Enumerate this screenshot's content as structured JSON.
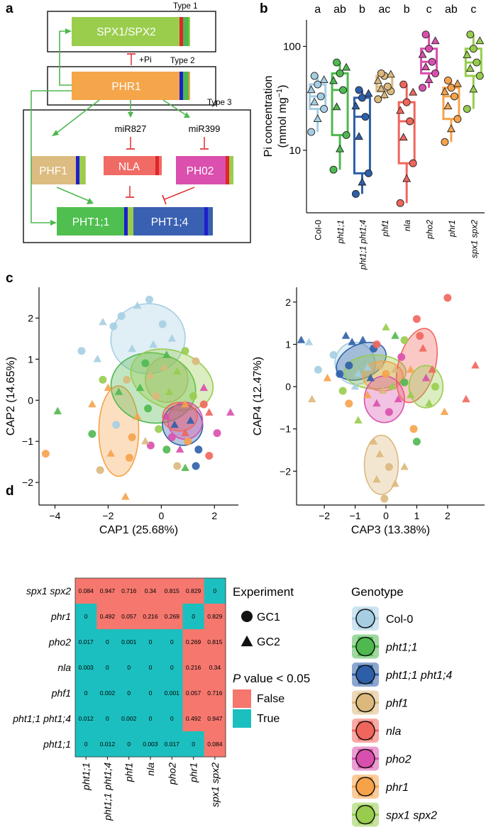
{
  "panel_labels": {
    "a": "a",
    "b": "b",
    "c": "c",
    "d": "d"
  },
  "genes": {
    "spx": "SPX1/SPX2",
    "phr": "PHR1",
    "phf1": "PHF1",
    "nla": "NLA",
    "pho2": "PH02",
    "pht11": "PHT1;1",
    "pht14": "PHT1;4"
  },
  "pathway": {
    "type1": "Type 1",
    "type2": "Type 2",
    "type3": "Type 3",
    "pi": "+Pi",
    "mir827": "miR827",
    "mir399": "miR399"
  },
  "colors": {
    "Col-0": "#a6cee3",
    "pht1;1": "#4fb84f",
    "pht1;1 pht1;4": "#2d5fa8",
    "phf1": "#dcb87c",
    "nla": "#f0655c",
    "pho2": "#d94fad",
    "phr1": "#f6a24a",
    "spx1 spx2": "#98cc4e",
    "false": "#f5776e",
    "true": "#1cbfbf"
  },
  "panel_b": {
    "type": "box",
    "ylabel": "Pi concentration",
    "yunit": "(mmol mg",
    "yunit_sup": "−1",
    "yunit_end": ")",
    "yscale": "log",
    "ylim": [
      2.5,
      180
    ],
    "yticks": [
      10,
      100
    ],
    "categories": [
      "Col-0",
      "pht1;1",
      "pht1;1 pht1;4",
      "phf1",
      "nla",
      "pho2",
      "phr1",
      "spx1 spx2"
    ],
    "letters": [
      "a",
      "ab",
      "b",
      "ac",
      "b",
      "c",
      "ab",
      "c"
    ],
    "boxes": [
      {
        "q1": 25,
        "median": 33,
        "q3": 43,
        "low": 15,
        "high": 52
      },
      {
        "q1": 14,
        "median": 38,
        "q3": 55,
        "low": 6.5,
        "high": 70
      },
      {
        "q1": 6,
        "median": 21,
        "q3": 32,
        "low": 3.8,
        "high": 38
      },
      {
        "q1": 37,
        "median": 41,
        "q3": 52,
        "low": 31,
        "high": 55
      },
      {
        "q1": 7.5,
        "median": 19,
        "q3": 29,
        "low": 3.1,
        "high": 43
      },
      {
        "q1": 55,
        "median": 71,
        "q3": 95,
        "low": 40,
        "high": 130
      },
      {
        "q1": 20,
        "median": 33,
        "q3": 40,
        "low": 12,
        "high": 47
      },
      {
        "q1": 52,
        "median": 70,
        "q3": 95,
        "low": 25,
        "high": 130
      }
    ]
  },
  "panel_c1": {
    "type": "scatter",
    "xlabel": "CAP1 (25.68%)",
    "ylabel": "CAP2 (14.65%)",
    "xlim": [
      -4.6,
      2.9
    ],
    "ylim": [
      -2.55,
      2.75
    ],
    "xticks": [
      -4,
      -2,
      0,
      2
    ],
    "yticks": [
      -2,
      -1,
      0,
      1,
      2
    ],
    "ellipses": [
      {
        "g": "Col-0",
        "cx": -0.5,
        "cy": 1.5,
        "rx": 1.4,
        "ry": 0.85,
        "rot": -10
      },
      {
        "g": "phr1",
        "cx": -1.6,
        "cy": -0.75,
        "rx": 0.75,
        "ry": 1.1,
        "rot": 0
      },
      {
        "g": "phf1",
        "cx": 0.2,
        "cy": 0.5,
        "rx": 0.8,
        "ry": 0.55,
        "rot": 0
      },
      {
        "g": "pht1;1",
        "cx": -0.3,
        "cy": 0.3,
        "rx": 1.6,
        "ry": 0.85,
        "rot": 10
      },
      {
        "g": "spx1 spx2",
        "cx": 0.4,
        "cy": 0.5,
        "rx": 1.6,
        "ry": 0.7,
        "rot": 20
      },
      {
        "g": "pht1;1 pht1;4",
        "cx": 0.8,
        "cy": -0.6,
        "rx": 0.75,
        "ry": 0.5,
        "rot": -30
      },
      {
        "g": "pho2",
        "cx": 0.9,
        "cy": -0.5,
        "rx": 0.65,
        "ry": 0.45,
        "rot": 0
      },
      {
        "g": "nla",
        "cx": 0.7,
        "cy": -0.4,
        "rx": 0.65,
        "ry": 0.35,
        "rot": 0
      }
    ],
    "points": [
      {
        "x": -4.35,
        "y": -1.3,
        "g": "phr1",
        "m": "c"
      },
      {
        "x": -3.9,
        "y": -0.27,
        "g": "pht1;1",
        "m": "t"
      },
      {
        "x": -2.6,
        "y": -0.82,
        "g": "pht1;1",
        "m": "c"
      },
      {
        "x": -2.4,
        "y": 1.0,
        "g": "Col-0",
        "m": "t"
      },
      {
        "x": -2.2,
        "y": 1.9,
        "g": "Col-0",
        "m": "t"
      },
      {
        "x": -1.8,
        "y": 1.8,
        "g": "Col-0",
        "m": "c"
      },
      {
        "x": -2.2,
        "y": 0.5,
        "g": "spx1 spx2",
        "m": "c"
      },
      {
        "x": -2.0,
        "y": 0.3,
        "g": "phr1",
        "m": "t"
      },
      {
        "x": -1.5,
        "y": 2.05,
        "g": "Col-0",
        "m": "c"
      },
      {
        "x": -0.9,
        "y": 2.3,
        "g": "Col-0",
        "m": "t"
      },
      {
        "x": -0.45,
        "y": 2.45,
        "g": "Col-0",
        "m": "c"
      },
      {
        "x": 0.05,
        "y": 1.85,
        "g": "Col-0",
        "m": "c"
      },
      {
        "x": -1.1,
        "y": 1.25,
        "g": "Col-0",
        "m": "t"
      },
      {
        "x": -0.3,
        "y": 1.35,
        "g": "Col-0",
        "m": "t"
      },
      {
        "x": 0.4,
        "y": 1.5,
        "g": "Col-0",
        "m": "t"
      },
      {
        "x": -1.6,
        "y": 0.2,
        "g": "pht1;1",
        "m": "t"
      },
      {
        "x": -1.3,
        "y": 0.5,
        "g": "phf1",
        "m": "c"
      },
      {
        "x": -1.2,
        "y": -1.4,
        "g": "phr1",
        "m": "c"
      },
      {
        "x": -1.9,
        "y": -1.3,
        "g": "phr1",
        "m": "t"
      },
      {
        "x": -1.35,
        "y": -2.35,
        "g": "phr1",
        "m": "t"
      },
      {
        "x": -0.4,
        "y": -1.1,
        "g": "pho2",
        "m": "c"
      },
      {
        "x": 0.6,
        "y": -1.6,
        "g": "phf1",
        "m": "c"
      },
      {
        "x": 0.9,
        "y": -1.65,
        "g": "pht1;1",
        "m": "t"
      },
      {
        "x": 1.3,
        "y": -1.6,
        "g": "pht1;1 pht1;4",
        "m": "c"
      },
      {
        "x": 1.4,
        "y": -1.2,
        "g": "pht1;1 pht1;4",
        "m": "c"
      },
      {
        "x": 1.8,
        "y": -1.35,
        "g": "nla",
        "m": "c"
      },
      {
        "x": 2.1,
        "y": -0.8,
        "g": "pho2",
        "m": "c"
      },
      {
        "x": 1.8,
        "y": -0.3,
        "g": "nla",
        "m": "t"
      },
      {
        "x": 1.6,
        "y": 0.3,
        "g": "pho2",
        "m": "t"
      },
      {
        "x": 1.3,
        "y": 0.95,
        "g": "phf1",
        "m": "c"
      },
      {
        "x": 0.9,
        "y": 1.2,
        "g": "spx1 spx2",
        "m": "c"
      },
      {
        "x": -0.6,
        "y": 0.9,
        "g": "pht1;1",
        "m": "c"
      },
      {
        "x": 0.1,
        "y": 0.8,
        "g": "phf1",
        "m": "t"
      },
      {
        "x": 0.6,
        "y": 0.7,
        "g": "spx1 spx2",
        "m": "t"
      },
      {
        "x": -0.8,
        "y": 0.3,
        "g": "pht1;1",
        "m": "t"
      },
      {
        "x": -0.2,
        "y": 0.1,
        "g": "phf1",
        "m": "c"
      },
      {
        "x": 0.3,
        "y": 0.2,
        "g": "spx1 spx2",
        "m": "t"
      },
      {
        "x": 0.9,
        "y": -0.1,
        "g": "phr1",
        "m": "t"
      },
      {
        "x": -0.5,
        "y": -0.2,
        "g": "pht1;1",
        "m": "c"
      },
      {
        "x": 0.2,
        "y": -0.4,
        "g": "pho2",
        "m": "t"
      },
      {
        "x": 0.5,
        "y": -0.6,
        "g": "pht1;1 pht1;4",
        "m": "t"
      },
      {
        "x": 0.9,
        "y": -0.8,
        "g": "nla",
        "m": "t"
      },
      {
        "x": 1.1,
        "y": -0.5,
        "g": "pht1;1 pht1;4",
        "m": "t"
      },
      {
        "x": 0.4,
        "y": -0.9,
        "g": "pho2",
        "m": "c"
      },
      {
        "x": -0.1,
        "y": -0.7,
        "g": "spx1 spx2",
        "m": "c"
      },
      {
        "x": -0.9,
        "y": -0.4,
        "g": "phr1",
        "m": "t"
      },
      {
        "x": -1.1,
        "y": -0.9,
        "g": "phr1",
        "m": "c"
      },
      {
        "x": -0.6,
        "y": -1.0,
        "g": "phf1",
        "m": "t"
      },
      {
        "x": 0.7,
        "y": -1.2,
        "g": "pho2",
        "m": "t"
      },
      {
        "x": 1.0,
        "y": -1.0,
        "g": "phr1",
        "m": "c"
      },
      {
        "x": -2.6,
        "y": -0.1,
        "g": "phr1",
        "m": "t"
      },
      {
        "x": -3.0,
        "y": 1.2,
        "g": "Col-0",
        "m": "c"
      },
      {
        "x": 1.6,
        "y": -0.1,
        "g": "nla",
        "m": "c"
      },
      {
        "x": 0.2,
        "y": 1.1,
        "g": "pht1;1",
        "m": "t"
      },
      {
        "x": -0.4,
        "y": 0.6,
        "g": "phf1",
        "m": "t"
      },
      {
        "x": 1.2,
        "y": 0.1,
        "g": "spx1 spx2",
        "m": "c"
      },
      {
        "x": -1.7,
        "y": -0.6,
        "g": "Col-0",
        "m": "c"
      },
      {
        "x": -2.3,
        "y": -1.7,
        "g": "phf1",
        "m": "c"
      },
      {
        "x": 0.2,
        "y": -1.2,
        "g": "pht1;1",
        "m": "c"
      },
      {
        "x": 2.6,
        "y": -0.3,
        "g": "pho2",
        "m": "t"
      }
    ]
  },
  "panel_c2": {
    "type": "scatter",
    "xlabel": "CAP3 (13.38%)",
    "ylabel": "CAP4 (12.47%)",
    "xlim": [
      -2.9,
      3.2
    ],
    "ylim": [
      -2.8,
      2.35
    ],
    "xticks": [
      -2,
      -1,
      0,
      1,
      2
    ],
    "yticks": [
      -2,
      -1,
      0,
      1,
      2
    ],
    "ellipses": [
      {
        "g": "Col-0",
        "cx": -1.0,
        "cy": 0.55,
        "rx": 0.65,
        "ry": 0.5,
        "rot": -10
      },
      {
        "g": "pht1;1 pht1;4",
        "cx": -0.8,
        "cy": 0.6,
        "rx": 0.85,
        "ry": 0.4,
        "rot": -25
      },
      {
        "g": "spx1 spx2",
        "cx": -0.35,
        "cy": 0.35,
        "rx": 1.0,
        "ry": 0.4,
        "rot": 0
      },
      {
        "g": "phr1",
        "cx": -0.1,
        "cy": 0.25,
        "rx": 0.65,
        "ry": 0.35,
        "rot": 0
      },
      {
        "g": "pho2",
        "cx": -0.05,
        "cy": -0.3,
        "rx": 0.65,
        "ry": 0.55,
        "rot": 0
      },
      {
        "g": "nla",
        "cx": 1.0,
        "cy": 0.5,
        "rx": 0.6,
        "ry": 0.9,
        "rot": 15
      },
      {
        "g": "spx1 spx2",
        "cx": 1.3,
        "cy": 0.0,
        "rx": 0.55,
        "ry": 0.5,
        "rot": 0
      },
      {
        "g": "phf1",
        "cx": -0.15,
        "cy": -1.85,
        "rx": 0.55,
        "ry": 0.7,
        "rot": 0
      }
    ],
    "points": [
      {
        "x": -2.75,
        "y": 1.1,
        "g": "pht1;1 pht1;4",
        "m": "t"
      },
      {
        "x": -2.5,
        "y": 1.05,
        "g": "Col-0",
        "m": "t"
      },
      {
        "x": -1.3,
        "y": 1.2,
        "g": "pht1;1 pht1;4",
        "m": "t"
      },
      {
        "x": -1.1,
        "y": 1.05,
        "g": "pht1;1 pht1;4",
        "m": "t"
      },
      {
        "x": -0.75,
        "y": 1.1,
        "g": "pht1;1 pht1;4",
        "m": "t"
      },
      {
        "x": -1.7,
        "y": 0.75,
        "g": "Col-0",
        "m": "c"
      },
      {
        "x": -1.9,
        "y": 0.2,
        "g": "phr1",
        "m": "t"
      },
      {
        "x": -1.2,
        "y": 0.5,
        "g": "pht1;1 pht1;4",
        "m": "c"
      },
      {
        "x": -0.9,
        "y": 0.3,
        "g": "Col-0",
        "m": "t"
      },
      {
        "x": -1.5,
        "y": 0.3,
        "g": "pht1;1 pht1;4",
        "m": "c"
      },
      {
        "x": -0.4,
        "y": 0.9,
        "g": "pht1;1 pht1;4",
        "m": "c"
      },
      {
        "x": -0.6,
        "y": 0.45,
        "g": "Col-0",
        "m": "t"
      },
      {
        "x": -0.2,
        "y": 0.5,
        "g": "phf1",
        "m": "c"
      },
      {
        "x": 0.3,
        "y": 1.2,
        "g": "pht1;1",
        "m": "t"
      },
      {
        "x": 0.6,
        "y": 1.1,
        "g": "spx1 spx2",
        "m": "c"
      },
      {
        "x": -0.3,
        "y": 1.0,
        "g": "nla",
        "m": "c"
      },
      {
        "x": -1.2,
        "y": -0.4,
        "g": "phr1",
        "m": "c"
      },
      {
        "x": -0.6,
        "y": -0.2,
        "g": "phr1",
        "m": "t"
      },
      {
        "x": -0.3,
        "y": -0.4,
        "g": "pho2",
        "m": "t"
      },
      {
        "x": 0.1,
        "y": -0.6,
        "g": "pho2",
        "m": "c"
      },
      {
        "x": 0.4,
        "y": -0.3,
        "g": "pho2",
        "m": "t"
      },
      {
        "x": 0.2,
        "y": 0.0,
        "g": "spx1 spx2",
        "m": "t"
      },
      {
        "x": 0.6,
        "y": 0.1,
        "g": "pht1;1",
        "m": "c"
      },
      {
        "x": 0.8,
        "y": -0.2,
        "g": "spx1 spx2",
        "m": "t"
      },
      {
        "x": 1.1,
        "y": 1.2,
        "g": "nla",
        "m": "c"
      },
      {
        "x": 1.2,
        "y": 0.9,
        "g": "nla",
        "m": "t"
      },
      {
        "x": 1.5,
        "y": 0.4,
        "g": "nla",
        "m": "t"
      },
      {
        "x": 1.0,
        "y": 1.6,
        "g": "nla",
        "m": "c"
      },
      {
        "x": 1.6,
        "y": 0.0,
        "g": "spx1 spx2",
        "m": "c"
      },
      {
        "x": 1.4,
        "y": -0.4,
        "g": "spx1 spx2",
        "m": "t"
      },
      {
        "x": 2.0,
        "y": 2.1,
        "g": "nla",
        "m": "c"
      },
      {
        "x": 2.9,
        "y": 0.5,
        "g": "nla",
        "m": "t"
      },
      {
        "x": 2.6,
        "y": -0.3,
        "g": "nla",
        "m": "t"
      },
      {
        "x": 1.9,
        "y": -0.6,
        "g": "phr1",
        "m": "t"
      },
      {
        "x": 0.9,
        "y": -1.0,
        "g": "phr1",
        "m": "c"
      },
      {
        "x": 1.0,
        "y": -1.3,
        "g": "pht1;1",
        "m": "c"
      },
      {
        "x": -0.4,
        "y": -1.3,
        "g": "phf1",
        "m": "t"
      },
      {
        "x": -0.2,
        "y": -1.6,
        "g": "phf1",
        "m": "t"
      },
      {
        "x": 0.1,
        "y": -1.9,
        "g": "phf1",
        "m": "c"
      },
      {
        "x": -0.3,
        "y": -2.2,
        "g": "phf1",
        "m": "t"
      },
      {
        "x": 0.3,
        "y": -2.3,
        "g": "phf1",
        "m": "t"
      },
      {
        "x": -0.05,
        "y": -2.65,
        "g": "phf1",
        "m": "c"
      },
      {
        "x": 0.6,
        "y": -1.9,
        "g": "phf1",
        "m": "t"
      },
      {
        "x": -2.4,
        "y": -0.3,
        "g": "phf1",
        "m": "t"
      },
      {
        "x": -2.2,
        "y": 0.4,
        "g": "Col-0",
        "m": "c"
      },
      {
        "x": -0.9,
        "y": -0.8,
        "g": "spx1 spx2",
        "m": "t"
      },
      {
        "x": 0.0,
        "y": 0.3,
        "g": "phr1",
        "m": "c"
      },
      {
        "x": -0.1,
        "y": -0.1,
        "g": "phf1",
        "m": "t"
      },
      {
        "x": 0.3,
        "y": 0.4,
        "g": "phf1",
        "m": "t"
      },
      {
        "x": -1.0,
        "y": 0.0,
        "g": "Col-0",
        "m": "t"
      },
      {
        "x": -0.5,
        "y": 0.2,
        "g": "pht1;1 pht1;4",
        "m": "t"
      },
      {
        "x": 0.5,
        "y": 0.7,
        "g": "pho2",
        "m": "c"
      },
      {
        "x": 1.3,
        "y": 0.2,
        "g": "pho2",
        "m": "t"
      },
      {
        "x": -1.4,
        "y": -0.1,
        "g": "spx1 spx2",
        "m": "c"
      },
      {
        "x": 0.8,
        "y": 0.4,
        "g": "phr1",
        "m": "t"
      },
      {
        "x": 0.0,
        "y": 1.4,
        "g": "spx1 spx2",
        "m": "t"
      }
    ]
  },
  "panel_d": {
    "type": "heatmap",
    "rows": [
      "spx1 spx2",
      "phr1",
      "pho2",
      "nla",
      "phf1",
      "pht1;1 pht1;4",
      "pht1;1"
    ],
    "cols": [
      "pht1;1",
      "pht1;1 pht1;4",
      "phf1",
      "nla",
      "pho2",
      "phr1",
      "spx1 spx2"
    ],
    "values": [
      [
        "0.084",
        "0.947",
        "0.716",
        "0.34",
        "0.815",
        "0.829",
        "0"
      ],
      [
        "0",
        "0.492",
        "0.057",
        "0.216",
        "0.269",
        "0",
        "0.829"
      ],
      [
        "0.017",
        "0",
        "0.001",
        "0",
        "0",
        "0.269",
        "0.815"
      ],
      [
        "0.003",
        "0",
        "0",
        "0",
        "0",
        "0.216",
        "0.34"
      ],
      [
        "0",
        "0.002",
        "0",
        "0",
        "0.001",
        "0.057",
        "0.716"
      ],
      [
        "0.012",
        "0",
        "0.002",
        "0",
        "0",
        "0.492",
        "0.947"
      ],
      [
        "0",
        "0.012",
        "0",
        "0.003",
        "0.017",
        "0",
        "0.084"
      ]
    ],
    "significant": [
      [
        false,
        false,
        false,
        false,
        false,
        false,
        true
      ],
      [
        true,
        false,
        false,
        false,
        false,
        true,
        false
      ],
      [
        true,
        true,
        true,
        true,
        true,
        false,
        false
      ],
      [
        true,
        true,
        true,
        true,
        true,
        false,
        false
      ],
      [
        true,
        true,
        true,
        true,
        true,
        false,
        false
      ],
      [
        true,
        true,
        true,
        true,
        true,
        false,
        false
      ],
      [
        true,
        true,
        true,
        true,
        true,
        true,
        false
      ]
    ]
  },
  "legend": {
    "experiment_title": "Experiment",
    "experiments": [
      "GC1",
      "GC2"
    ],
    "pvalue_title_p": "P",
    "pvalue_title_rest": " value < 0.05",
    "pvalue_items": [
      "False",
      "True"
    ],
    "genotype_title": "Genotype",
    "genotypes": [
      "Col-0",
      "pht1;1",
      "pht1;1 pht1;4",
      "phf1",
      "nla",
      "pho2",
      "phr1",
      "spx1 spx2"
    ]
  }
}
